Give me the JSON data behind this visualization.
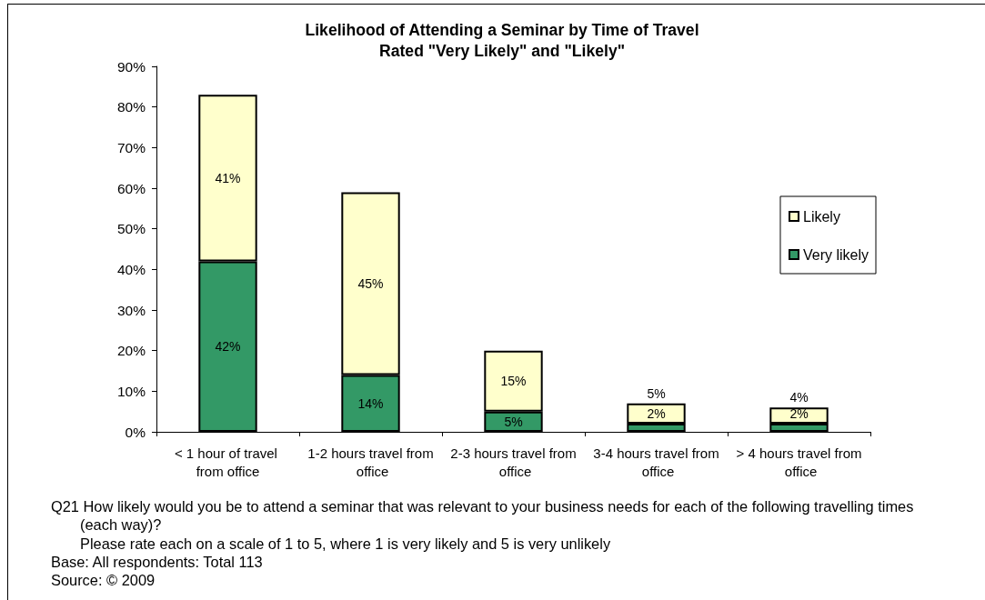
{
  "chart_data": {
    "type": "bar",
    "title": "Likelihood of Attending a Seminar by Time of Travel",
    "subtitle": "Rated \"Very Likely\" and \"Likely\"",
    "categories": [
      "< 1 hour of travel from office",
      "1-2 hours travel from office",
      "2-3 hours travel from office",
      "3-4 hours travel from office",
      "> 4 hours travel from office"
    ],
    "series": [
      {
        "name": "Very likely",
        "color": "#339966",
        "values": [
          42,
          14,
          5,
          2,
          2
        ],
        "value_labels": [
          "42%",
          "14%",
          "5%",
          "2%",
          "2%"
        ]
      },
      {
        "name": "Likely",
        "color": "#ffffcc",
        "values": [
          41,
          45,
          15,
          5,
          4
        ],
        "value_labels": [
          "41%",
          "45%",
          "15%",
          "5%",
          "4%"
        ]
      }
    ],
    "stacked": true,
    "ylim": [
      0,
      90
    ],
    "yticks": [
      {
        "value": 0,
        "label": "0%"
      },
      {
        "value": 10,
        "label": "10%"
      },
      {
        "value": 20,
        "label": "20%"
      },
      {
        "value": 30,
        "label": "30%"
      },
      {
        "value": 40,
        "label": "40%"
      },
      {
        "value": 50,
        "label": "50%"
      },
      {
        "value": 60,
        "label": "60%"
      },
      {
        "value": 70,
        "label": "70%"
      },
      {
        "value": 80,
        "label": "80%"
      },
      {
        "value": 90,
        "label": "90%"
      }
    ],
    "grid": false,
    "legend": "right",
    "annotations": [
      "Q21 How likely would you be to attend a seminar that was relevant to your business needs for each of the following travelling times (each way)?\nPlease rate each on a scale of 1 to 5, where 1 is very likely and 5 is very unlikely",
      "Base: All respondents: Total 113",
      "Source: © 2009"
    ]
  }
}
